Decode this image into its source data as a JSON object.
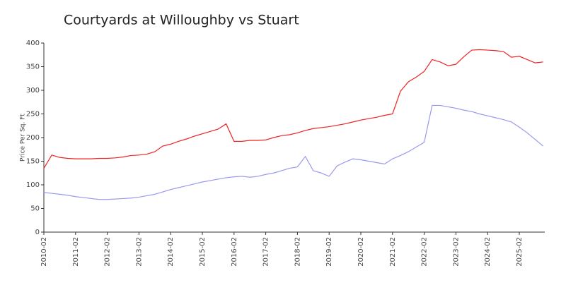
{
  "chart_data": {
    "type": "line",
    "title": "Courtyards at Willoughby vs Stuart",
    "y_label": "Price Per Sq. Ft",
    "categories": [
      "2010-02",
      null,
      null,
      null,
      "2011-02",
      null,
      null,
      null,
      "2012-02",
      null,
      null,
      null,
      "2013-02",
      null,
      null,
      null,
      "2014-02",
      null,
      null,
      null,
      "2015-02",
      null,
      null,
      null,
      "2016-02",
      null,
      null,
      null,
      "2017-02",
      null,
      null,
      null,
      "2018-02",
      null,
      null,
      null,
      "2019-02",
      null,
      null,
      null,
      "2020-02",
      null,
      null,
      null,
      "2021-02",
      null,
      null,
      null,
      "2022-02",
      null,
      null,
      null,
      "2023-02",
      null,
      null,
      null,
      "2024-02",
      null,
      null,
      null,
      "2025-02",
      null,
      null,
      null
    ],
    "series": [
      {
        "color": "#ee2222",
        "values": [
          135,
          163,
          158,
          156,
          155,
          155,
          155,
          156,
          156,
          157,
          159,
          162,
          163,
          165,
          170,
          182,
          186,
          192,
          197,
          203,
          208,
          213,
          218,
          229,
          192,
          192,
          194,
          194,
          195,
          200,
          204,
          206,
          210,
          215,
          219,
          221,
          223,
          226,
          229,
          233,
          237,
          240,
          243,
          247,
          250,
          298,
          318,
          328,
          340,
          365,
          360,
          352,
          355,
          371,
          385,
          386,
          385,
          384,
          382,
          370,
          372,
          365,
          358,
          360
        ]
      },
      {
        "color": "#9999ee",
        "values": [
          84,
          82,
          80,
          78,
          75,
          73,
          71,
          69,
          69,
          70,
          71,
          72,
          74,
          77,
          80,
          85,
          90,
          94,
          98,
          102,
          106,
          109,
          112,
          115,
          117,
          118,
          116,
          118,
          122,
          125,
          130,
          135,
          138,
          160,
          130,
          125,
          118,
          140,
          148,
          155,
          153,
          150,
          147,
          144,
          155,
          162,
          170,
          180,
          190,
          268,
          268,
          265,
          262,
          258,
          255,
          250,
          246,
          242,
          238,
          233,
          222,
          210,
          196,
          182
        ]
      }
    ],
    "ylim": [
      0,
      400
    ],
    "yticks": [
      0,
      50,
      100,
      150,
      200,
      250,
      300,
      350,
      400
    ]
  }
}
